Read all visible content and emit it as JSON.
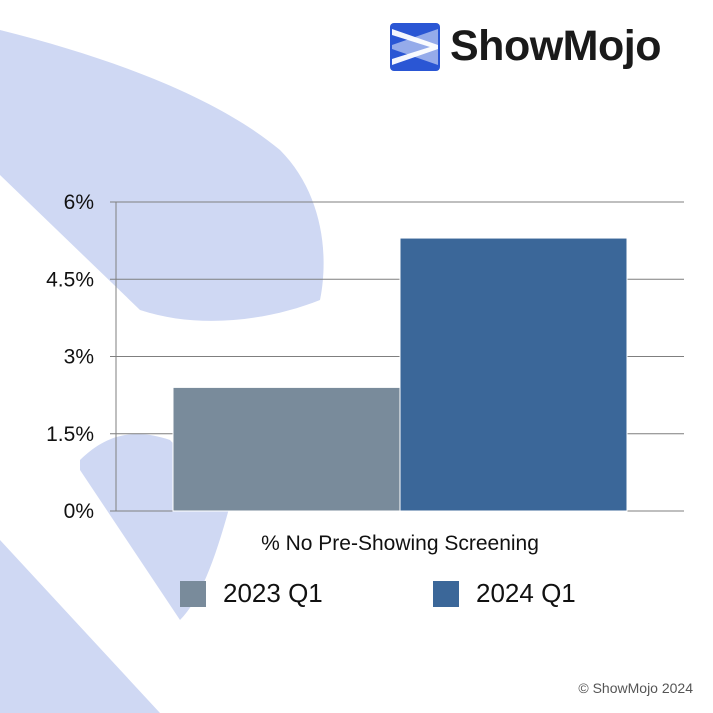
{
  "brand": {
    "name": "ShowMojo"
  },
  "chart_data": {
    "type": "bar",
    "xlabel": "% No Pre-Showing Screening",
    "ylabel": "",
    "ylim": [
      0,
      6
    ],
    "yticks": [
      0,
      1.5,
      3,
      4.5,
      6
    ],
    "ytick_labels": [
      "0%",
      "1.5%",
      "3%",
      "4.5%",
      "6%"
    ],
    "categories": [
      "% No Pre-Showing Screening"
    ],
    "series": [
      {
        "name": "2023 Q1",
        "values": [
          2.4
        ],
        "color": "#798b9b"
      },
      {
        "name": "2024 Q1",
        "values": [
          5.3
        ],
        "color": "#3b6799"
      }
    ],
    "grid": true,
    "legend_position": "bottom"
  },
  "footer": {
    "copyright": "© ShowMojo 2024"
  },
  "colors": {
    "background_shape": "#cfd8f3",
    "logo_blue": "#2a56d4",
    "gridline": "#7f7f7f"
  }
}
